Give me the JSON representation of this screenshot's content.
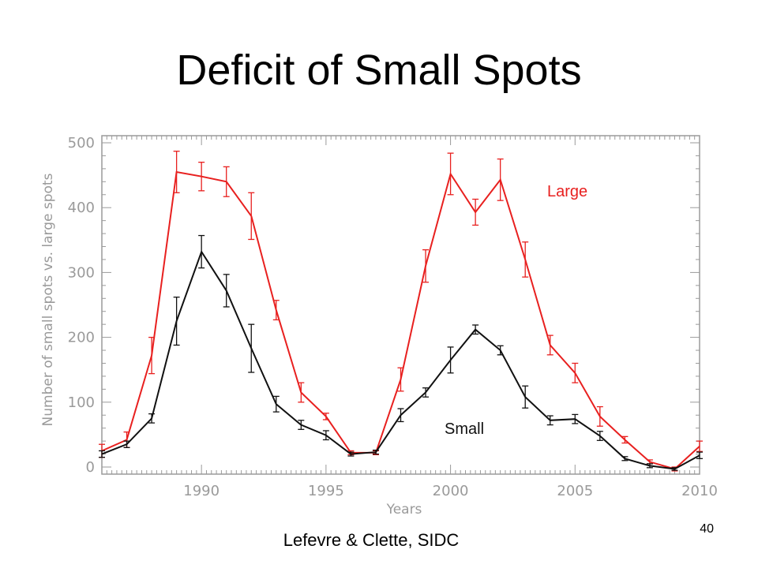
{
  "slide": {
    "title": "Deficit of Small Spots",
    "credit": "Lefevre & Clette, SIDC",
    "page_number": "40"
  },
  "colors": {
    "large": "#e8201f",
    "small": "#111111",
    "axis": "#9a9a9a"
  },
  "chart_data": {
    "type": "line",
    "title": "",
    "xlabel": "Years",
    "ylabel": "Number of small spots vs. large spots",
    "xlim": [
      1986,
      2010
    ],
    "ylim": [
      0,
      500
    ],
    "x_ticks": [
      "1990",
      "1995",
      "2000",
      "2005",
      "2010"
    ],
    "y_ticks": [
      "0",
      "100",
      "200",
      "300",
      "400",
      "500"
    ],
    "x": [
      1986,
      1987,
      1988,
      1989,
      1990,
      1991,
      1992,
      1993,
      1994,
      1995,
      1996,
      1997,
      1998,
      1999,
      2000,
      2001,
      2002,
      2003,
      2004,
      2005,
      2006,
      2007,
      2008,
      2009,
      2010
    ],
    "series": [
      {
        "name": "Large",
        "color": "#e8201f",
        "values": [
          25,
          42,
          172,
          455,
          448,
          440,
          387,
          242,
          115,
          78,
          22,
          22,
          135,
          310,
          452,
          393,
          443,
          320,
          188,
          145,
          78,
          42,
          8,
          -3,
          32
        ],
        "errors": [
          10,
          12,
          28,
          32,
          22,
          23,
          36,
          15,
          15,
          5,
          3,
          3,
          18,
          25,
          32,
          20,
          32,
          27,
          15,
          15,
          15,
          5,
          3,
          3,
          8
        ]
      },
      {
        "name": "Small",
        "color": "#111111",
        "values": [
          20,
          35,
          75,
          225,
          332,
          272,
          183,
          97,
          65,
          49,
          20,
          23,
          80,
          115,
          165,
          212,
          180,
          108,
          72,
          74,
          48,
          13,
          2,
          -3,
          18
        ],
        "errors": [
          5,
          5,
          7,
          37,
          25,
          25,
          37,
          12,
          7,
          7,
          3,
          3,
          10,
          7,
          20,
          7,
          7,
          17,
          7,
          7,
          7,
          3,
          3,
          2,
          5
        ]
      }
    ]
  }
}
